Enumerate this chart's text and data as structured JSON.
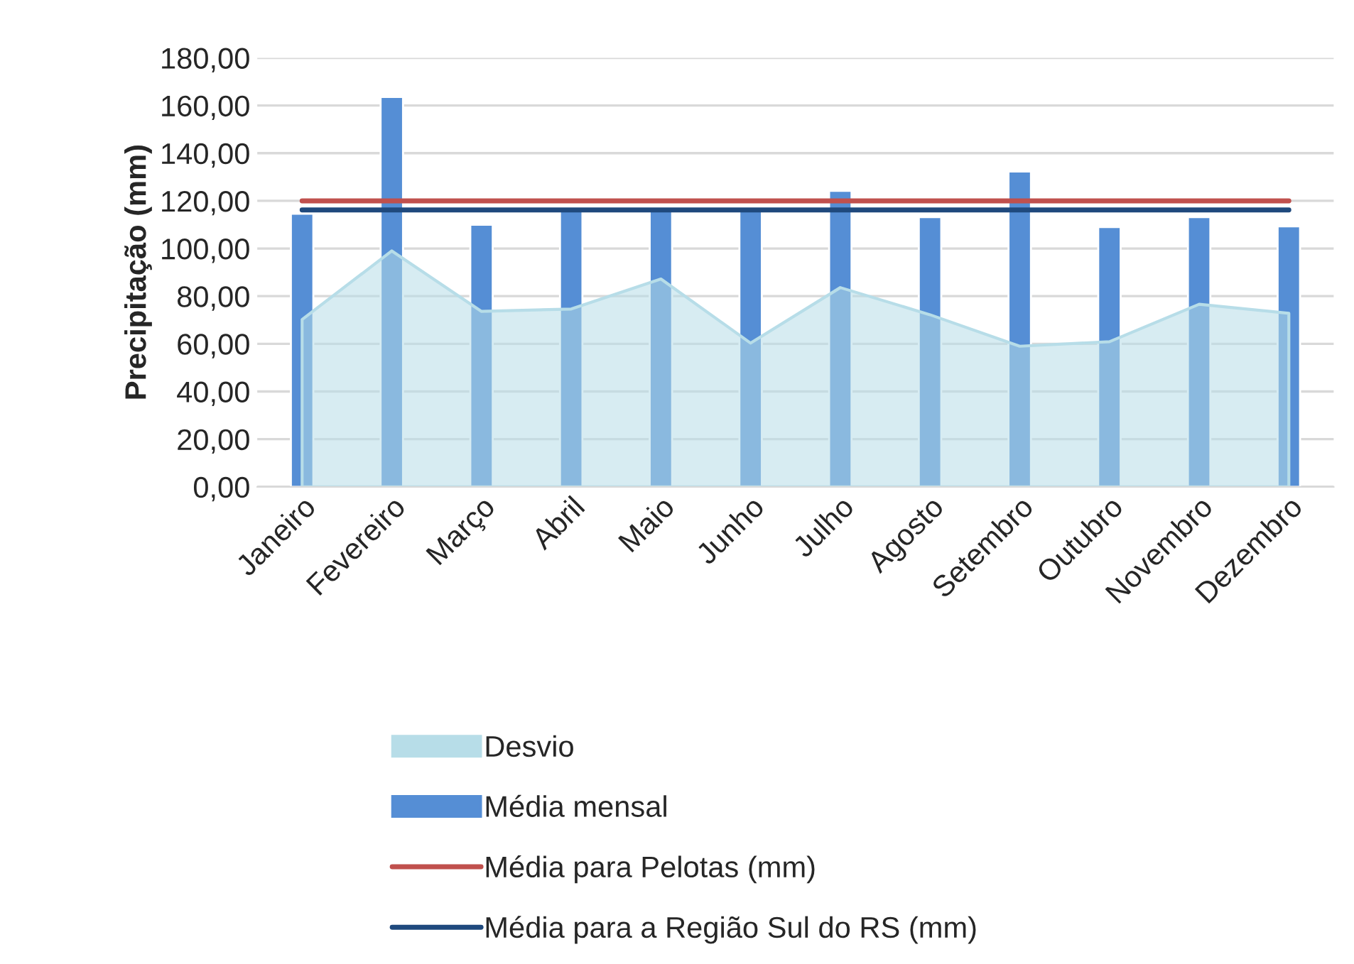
{
  "chart_data": {
    "type": "bar",
    "ylabel": "Precipitação (mm)",
    "categories": [
      "Janeiro",
      "Fevereiro",
      "Março",
      "Abril",
      "Maio",
      "Junho",
      "Julho",
      "Agosto",
      "Setembro",
      "Outubro",
      "Novembro",
      "Dezembro"
    ],
    "series": [
      {
        "name": "Desvio",
        "type": "area",
        "color": "#b7dde8",
        "values": [
          70.2,
          99,
          73.6,
          74.6,
          87.2,
          60.3,
          83.6,
          72.2,
          59,
          60.9,
          76.6,
          72.8
        ]
      },
      {
        "name": "Média mensal",
        "color": "#558ed5",
        "values": [
          114.6,
          163.6,
          110,
          116,
          116,
          116,
          124.2,
          113.2,
          132.3,
          109,
          113.2,
          109.3
        ]
      },
      {
        "name": "Média para Pelotas (mm)",
        "type": "line",
        "color": "#c0504d",
        "values": [
          120,
          120,
          120,
          120,
          120,
          120,
          120,
          120,
          120,
          120,
          120,
          120
        ]
      },
      {
        "name": "Média para a Região Sul do RS (mm)",
        "type": "line",
        "color": "#1f497d",
        "values": [
          116.2,
          116.2,
          116.2,
          116.2,
          116.2,
          116.2,
          116.2,
          116.2,
          116.2,
          116.2,
          116.2,
          116.2
        ]
      }
    ],
    "ylim": [
      0,
      180
    ],
    "yticks": [
      {
        "value": 0,
        "label": "0,00"
      },
      {
        "value": 20,
        "label": "20,00"
      },
      {
        "value": 40,
        "label": "40,00"
      },
      {
        "value": 60,
        "label": "60,00"
      },
      {
        "value": 80,
        "label": "80,00"
      },
      {
        "value": 100,
        "label": "100,00"
      },
      {
        "value": 120,
        "label": "120,00"
      },
      {
        "value": 140,
        "label": "140,00"
      },
      {
        "value": 160,
        "label": "160,00"
      },
      {
        "value": 180,
        "label": "180,00"
      }
    ],
    "grid": "y",
    "legend": "bottom",
    "marker": "none",
    "line_style": "solid"
  }
}
